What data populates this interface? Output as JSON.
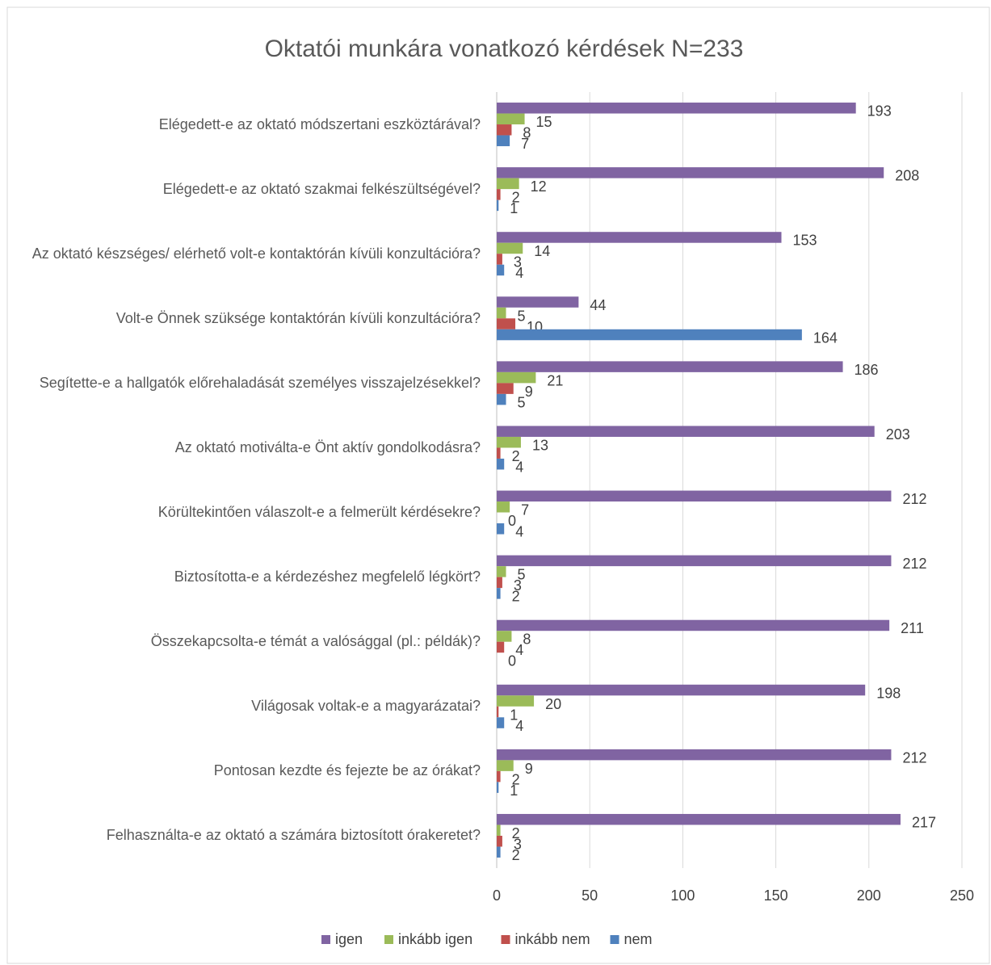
{
  "chart_data": {
    "type": "hbar",
    "title": "Oktatói munkára vonatkozó kérdések N=233",
    "categories": [
      "Elégedett-e az oktató módszertani eszköztárával?",
      "Elégedett-e az oktató szakmai felkészültségével?",
      "Az oktató készséges/ elérhető volt-e kontaktórán kívüli konzultációra?",
      "Volt-e Önnek szüksége kontaktórán kívüli konzultációra?",
      "Segítette-e a hallgatók előrehaladását személyes visszajelzésekkel?",
      "Az oktató motiválta-e Önt aktív gondolkodásra?",
      "Körültekintően válaszolt-e a felmerült kérdésekre?",
      "Biztosította-e a kérdezéshez megfelelő légkört?",
      "Összekapcsolta-e témát a valósággal (pl.: példák)?",
      "Világosak voltak-e a magyarázatai?",
      "Pontosan kezdte és fejezte be az órákat?",
      "Felhasználta-e az oktató a számára biztosított órakeretet?"
    ],
    "series": [
      {
        "name": "igen",
        "color": "#8064a2",
        "values": [
          193,
          208,
          153,
          44,
          186,
          203,
          212,
          212,
          211,
          198,
          212,
          217
        ]
      },
      {
        "name": "inkább igen",
        "color": "#9bbb59",
        "values": [
          15,
          12,
          14,
          5,
          21,
          13,
          7,
          5,
          8,
          20,
          9,
          2
        ]
      },
      {
        "name": "inkább nem",
        "color": "#c0504d",
        "values": [
          8,
          2,
          3,
          10,
          9,
          2,
          0,
          3,
          4,
          1,
          2,
          3
        ]
      },
      {
        "name": "nem",
        "color": "#4f81bd",
        "values": [
          7,
          1,
          4,
          164,
          5,
          4,
          4,
          2,
          0,
          4,
          1,
          2
        ]
      }
    ],
    "xlim": [
      0,
      250
    ],
    "xticks": [
      0,
      50,
      100,
      150,
      200,
      250
    ],
    "grid": true,
    "legend": "bottom"
  }
}
